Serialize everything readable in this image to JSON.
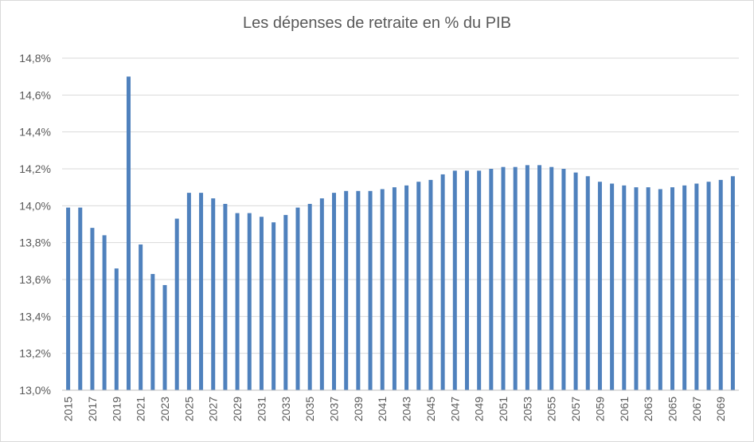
{
  "chart_data": {
    "type": "bar",
    "title": "Les dépenses de retraite en % du PIB",
    "xlabel": "",
    "ylabel": "",
    "ylim": [
      13.0,
      14.8
    ],
    "yticks": [
      13.0,
      13.2,
      13.4,
      13.6,
      13.8,
      14.0,
      14.2,
      14.4,
      14.6,
      14.8
    ],
    "ytick_labels": [
      "13,0%",
      "13,2%",
      "13,4%",
      "13,6%",
      "13,8%",
      "14,0%",
      "14,2%",
      "14,4%",
      "14,6%",
      "14,8%"
    ],
    "grid": true,
    "color": "#4f81bd",
    "categories": [
      "2015",
      "2016",
      "2017",
      "2018",
      "2019",
      "2020",
      "2021",
      "2022",
      "2023",
      "2024",
      "2025",
      "2026",
      "2027",
      "2028",
      "2029",
      "2030",
      "2031",
      "2032",
      "2033",
      "2034",
      "2035",
      "2036",
      "2037",
      "2038",
      "2039",
      "2040",
      "2041",
      "2042",
      "2043",
      "2044",
      "2045",
      "2046",
      "2047",
      "2048",
      "2049",
      "2050",
      "2051",
      "2052",
      "2053",
      "2054",
      "2055",
      "2056",
      "2057",
      "2058",
      "2059",
      "2060",
      "2061",
      "2062",
      "2063",
      "2064",
      "2065",
      "2066",
      "2067",
      "2068",
      "2069",
      "2070"
    ],
    "tick_labels_shown": [
      "2015",
      "2017",
      "2019",
      "2021",
      "2023",
      "2025",
      "2027",
      "2029",
      "2031",
      "2033",
      "2035",
      "2037",
      "2039",
      "2041",
      "2043",
      "2045",
      "2047",
      "2049",
      "2051",
      "2053",
      "2055",
      "2057",
      "2059",
      "2061",
      "2063",
      "2065",
      "2067",
      "2069"
    ],
    "values": [
      13.99,
      13.99,
      13.88,
      13.84,
      13.66,
      14.7,
      13.79,
      13.63,
      13.57,
      13.93,
      14.07,
      14.07,
      14.04,
      14.01,
      13.96,
      13.96,
      13.94,
      13.91,
      13.95,
      13.99,
      14.01,
      14.04,
      14.07,
      14.08,
      14.08,
      14.08,
      14.09,
      14.1,
      14.11,
      14.13,
      14.14,
      14.17,
      14.19,
      14.19,
      14.19,
      14.2,
      14.21,
      14.21,
      14.22,
      14.22,
      14.21,
      14.2,
      14.18,
      14.16,
      14.13,
      14.12,
      14.11,
      14.1,
      14.1,
      14.09,
      14.1,
      14.11,
      14.12,
      14.13,
      14.14,
      14.16
    ]
  }
}
